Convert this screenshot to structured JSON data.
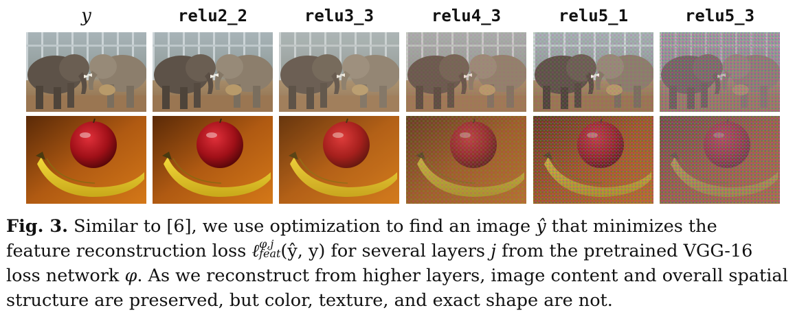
{
  "figure": {
    "headers": [
      "y",
      "relu2_2",
      "relu3_3",
      "relu4_3",
      "relu5_1",
      "relu5_3"
    ],
    "rows": [
      {
        "name": "elephants"
      },
      {
        "name": "apple-banana"
      }
    ]
  },
  "caption": {
    "lead": "Fig. 3.",
    "line1_a": "Similar to [6], we use optimization to find an image",
    "yhat": "ŷ",
    "line1_b": "that minimizes the",
    "line2_a": "feature reconstruction loss",
    "ell": "ℓ",
    "sup": "φ,j",
    "sub": "feat",
    "args": "(ŷ, y)",
    "line2_b": "for several layers",
    "j": "j",
    "line2_c": "from the pretrained VGG-16",
    "line3_a": "loss network",
    "phi": "φ",
    "line3_b": ". As we reconstruct from higher layers, image content and overall spatial",
    "line4": "structure are preserved, but color, texture, and exact shape are not."
  }
}
